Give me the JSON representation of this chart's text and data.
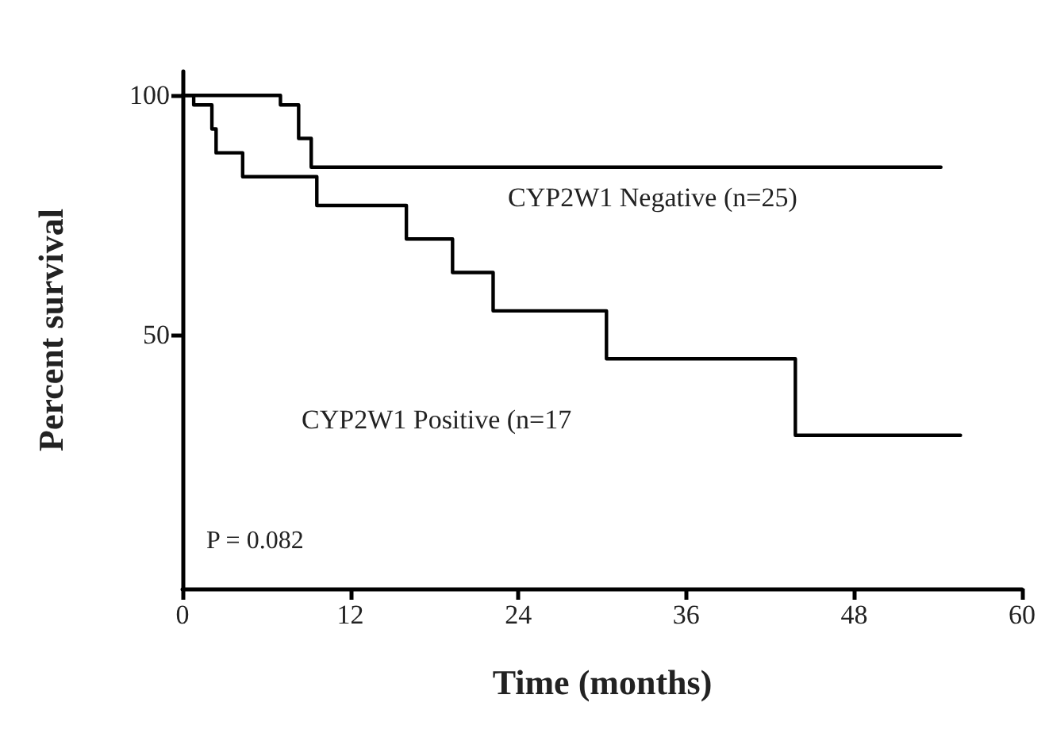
{
  "chart_data": {
    "type": "step",
    "xlabel": "Time (months)",
    "ylabel": "Percent survival",
    "xlim": [
      0,
      60
    ],
    "xticks": [
      0,
      12,
      24,
      36,
      48,
      60
    ],
    "ylim": [
      -3,
      105
    ],
    "yticks": [
      50,
      100
    ],
    "grid": false,
    "legend": false,
    "marker": "none",
    "line_style": "solid",
    "series": [
      {
        "name": "CYP2W1 Negative (n=25)",
        "color": "#000000",
        "x": [
          0,
          7.0,
          8.3,
          9.2,
          54.2
        ],
        "values": [
          100,
          98,
          91,
          85,
          85
        ]
      },
      {
        "name": "CYP2W1 Positive (n=17",
        "color": "#000000",
        "x": [
          0,
          0.8,
          2.1,
          2.4,
          4.3,
          9.6,
          16.0,
          19.3,
          22.2,
          30.3,
          43.8,
          55.6
        ],
        "values": [
          100,
          98,
          93,
          88,
          83,
          77,
          70,
          63,
          55,
          45,
          29,
          29
        ]
      }
    ],
    "annotations": [
      "P = 0.082"
    ]
  }
}
